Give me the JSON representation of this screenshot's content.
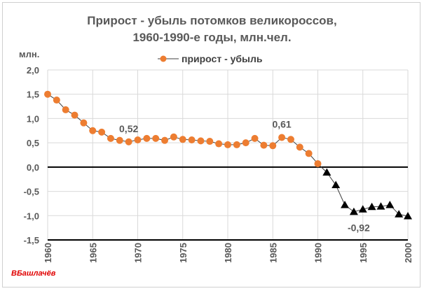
{
  "title_line1": "Прирост - убыль потомков великороссов,",
  "title_line2": "1960-1990-е годы, млн.чел.",
  "unit_label": "млн.",
  "legend_label": "прирост - убыль",
  "signature": "ВБашлачёв",
  "colors": {
    "orange": "#ed7d31",
    "black": "#000000",
    "grid": "#d9d9d9",
    "text": "#595959"
  },
  "chart_data": {
    "type": "line",
    "xlim": [
      1960,
      2000
    ],
    "ylim": [
      -1.5,
      2.0
    ],
    "x_ticks": [
      "1960",
      "1965",
      "1970",
      "1975",
      "1980",
      "1985",
      "1990",
      "1995",
      "2000"
    ],
    "y_ticks": [
      "2,0",
      "1,5",
      "1,0",
      "0,5",
      "0,0",
      "-0,5",
      "-1,0",
      "-1,5"
    ],
    "series": [
      {
        "name": "прирост - убыль",
        "marker": "circle",
        "x": [
          1960,
          1961,
          1962,
          1963,
          1964,
          1965,
          1966,
          1967,
          1968,
          1969,
          1970,
          1971,
          1972,
          1973,
          1974,
          1975,
          1976,
          1977,
          1978,
          1979,
          1980,
          1981,
          1982,
          1983,
          1984,
          1985,
          1986,
          1987,
          1988,
          1989,
          1990
        ],
        "y": [
          1.5,
          1.38,
          1.18,
          1.07,
          0.91,
          0.75,
          0.72,
          0.59,
          0.55,
          0.52,
          0.56,
          0.59,
          0.59,
          0.55,
          0.62,
          0.57,
          0.56,
          0.54,
          0.53,
          0.48,
          0.46,
          0.46,
          0.5,
          0.59,
          0.45,
          0.44,
          0.61,
          0.57,
          0.41,
          0.28,
          0.07
        ]
      },
      {
        "name": "",
        "marker": "triangle",
        "x": [
          1991,
          1992,
          1993,
          1994,
          1995,
          1996,
          1997,
          1998,
          1999,
          2000
        ],
        "y": [
          -0.11,
          -0.37,
          -0.78,
          -0.92,
          -0.87,
          -0.82,
          -0.81,
          -0.78,
          -0.97,
          -1.01
        ]
      }
    ],
    "annotations": [
      {
        "text": "0,52",
        "x": 1969,
        "y": 0.52
      },
      {
        "text": "0,61",
        "x": 1986,
        "y": 0.61
      },
      {
        "text": "-0,92",
        "x": 1994,
        "y": -0.92
      }
    ]
  }
}
